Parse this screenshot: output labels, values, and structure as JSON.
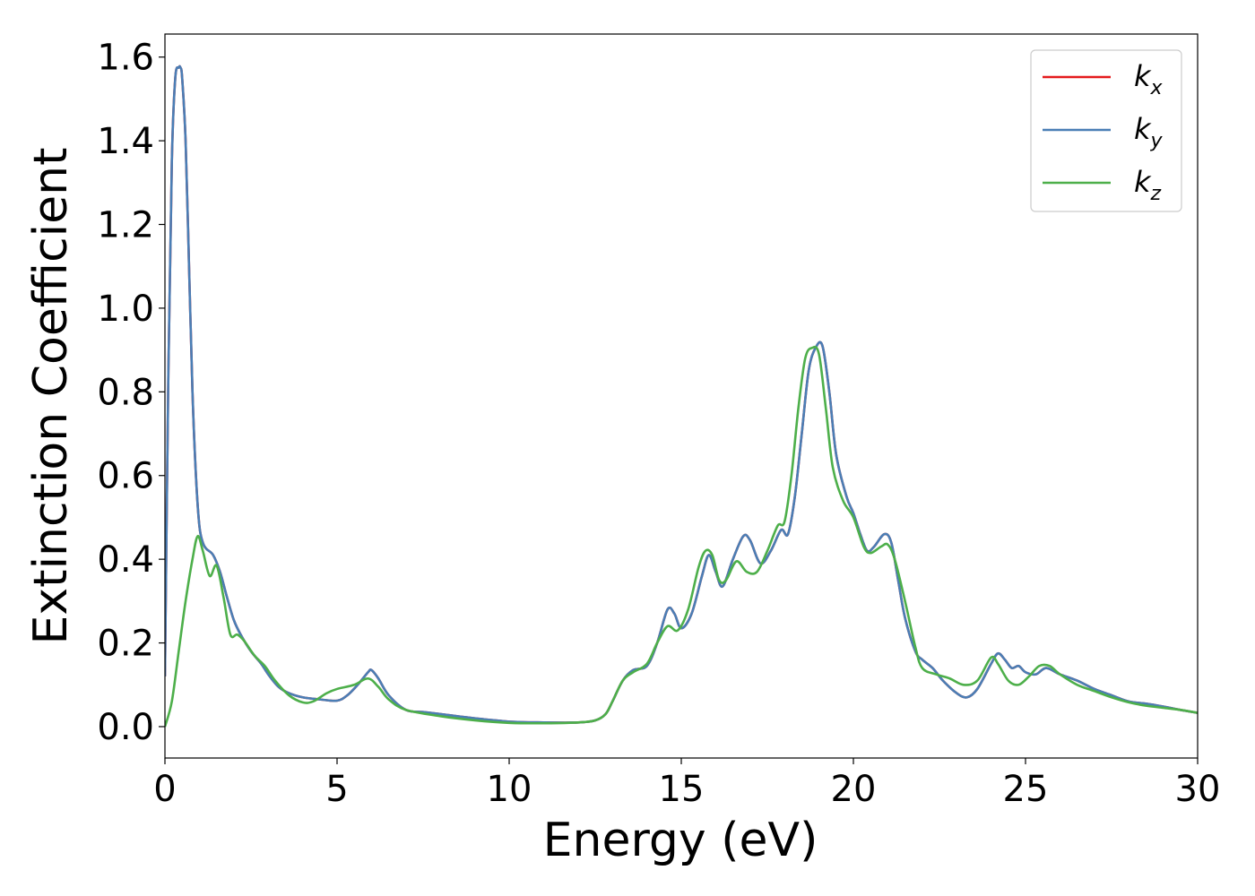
{
  "chart_data": {
    "type": "line",
    "title": "",
    "xlabel": "Energy (eV)",
    "ylabel": "Extinction Coefficient",
    "xlim": [
      0,
      30
    ],
    "ylim": [
      -0.075,
      1.655
    ],
    "xticks": [
      0,
      5,
      10,
      15,
      20,
      25,
      30
    ],
    "xtick_labels": [
      "0",
      "5",
      "10",
      "15",
      "20",
      "25",
      "30"
    ],
    "yticks": [
      0.0,
      0.2,
      0.4,
      0.6,
      0.8,
      1.0,
      1.2,
      1.4,
      1.6
    ],
    "ytick_labels": [
      "0.0",
      "0.2",
      "0.4",
      "0.6",
      "0.8",
      "1.0",
      "1.2",
      "1.4",
      "1.6"
    ],
    "grid": false,
    "legend_position": "top-right",
    "series": [
      {
        "name": "k_x",
        "label_main": "k",
        "label_sub": "x",
        "color": "#e41a1c",
        "x": [
          0,
          0.1,
          0.2,
          0.3,
          0.4,
          0.45,
          0.5,
          0.6,
          0.7,
          0.8,
          0.9,
          1.0,
          1.1,
          1.2,
          1.4,
          1.6,
          1.8,
          2.0,
          2.2,
          2.5,
          2.8,
          3.0,
          3.3,
          3.6,
          4.0,
          4.5,
          5.0,
          5.3,
          5.6,
          5.9,
          6.0,
          6.2,
          6.5,
          7.0,
          7.5,
          8.0,
          9.0,
          10.0,
          11.0,
          12.0,
          12.5,
          12.8,
          13.0,
          13.3,
          13.6,
          14.0,
          14.3,
          14.6,
          14.8,
          15.0,
          15.3,
          15.6,
          15.8,
          16.0,
          16.2,
          16.5,
          16.8,
          17.0,
          17.3,
          17.6,
          17.9,
          18.1,
          18.3,
          18.5,
          18.7,
          18.9,
          19.1,
          19.3,
          19.5,
          19.8,
          20.0,
          20.2,
          20.4,
          20.6,
          20.9,
          21.1,
          21.3,
          21.5,
          21.8,
          22.0,
          22.3,
          22.6,
          23.0,
          23.3,
          23.6,
          24.0,
          24.2,
          24.4,
          24.6,
          24.8,
          25.0,
          25.3,
          25.6,
          26.0,
          26.5,
          27.0,
          27.5,
          28.0,
          28.5,
          29.0,
          29.5,
          30.0
        ],
        "y": [
          0.12,
          0.85,
          1.35,
          1.55,
          1.575,
          1.575,
          1.55,
          1.4,
          1.1,
          0.8,
          0.6,
          0.48,
          0.44,
          0.425,
          0.41,
          0.37,
          0.31,
          0.255,
          0.22,
          0.18,
          0.15,
          0.125,
          0.095,
          0.08,
          0.07,
          0.065,
          0.062,
          0.075,
          0.1,
          0.13,
          0.135,
          0.115,
          0.075,
          0.04,
          0.035,
          0.03,
          0.02,
          0.012,
          0.01,
          0.01,
          0.015,
          0.03,
          0.06,
          0.11,
          0.135,
          0.145,
          0.2,
          0.28,
          0.27,
          0.235,
          0.27,
          0.36,
          0.41,
          0.37,
          0.335,
          0.4,
          0.455,
          0.445,
          0.39,
          0.42,
          0.47,
          0.46,
          0.55,
          0.7,
          0.85,
          0.905,
          0.91,
          0.8,
          0.65,
          0.55,
          0.51,
          0.46,
          0.42,
          0.43,
          0.46,
          0.44,
          0.35,
          0.26,
          0.18,
          0.16,
          0.14,
          0.11,
          0.08,
          0.07,
          0.09,
          0.15,
          0.175,
          0.16,
          0.14,
          0.145,
          0.13,
          0.125,
          0.14,
          0.125,
          0.11,
          0.09,
          0.075,
          0.06,
          0.055,
          0.048,
          0.04,
          0.033
        ]
      },
      {
        "name": "k_y",
        "label_main": "k",
        "label_sub": "y",
        "color": "#4a7eb5",
        "x": [
          0,
          0.1,
          0.2,
          0.3,
          0.4,
          0.45,
          0.5,
          0.6,
          0.7,
          0.8,
          0.9,
          1.0,
          1.1,
          1.2,
          1.4,
          1.6,
          1.8,
          2.0,
          2.2,
          2.5,
          2.8,
          3.0,
          3.3,
          3.6,
          4.0,
          4.5,
          5.0,
          5.3,
          5.6,
          5.9,
          6.0,
          6.2,
          6.5,
          7.0,
          7.5,
          8.0,
          9.0,
          10.0,
          11.0,
          12.0,
          12.5,
          12.8,
          13.0,
          13.3,
          13.6,
          14.0,
          14.3,
          14.6,
          14.8,
          15.0,
          15.3,
          15.6,
          15.8,
          16.0,
          16.2,
          16.5,
          16.8,
          17.0,
          17.3,
          17.6,
          17.9,
          18.1,
          18.3,
          18.5,
          18.7,
          18.9,
          19.1,
          19.3,
          19.5,
          19.8,
          20.0,
          20.2,
          20.4,
          20.6,
          20.9,
          21.1,
          21.3,
          21.5,
          21.8,
          22.0,
          22.3,
          22.6,
          23.0,
          23.3,
          23.6,
          24.0,
          24.2,
          24.4,
          24.6,
          24.8,
          25.0,
          25.3,
          25.6,
          26.0,
          26.5,
          27.0,
          27.5,
          28.0,
          28.5,
          29.0,
          29.5,
          30.0
        ],
        "y": [
          0.12,
          0.85,
          1.35,
          1.55,
          1.575,
          1.575,
          1.55,
          1.4,
          1.1,
          0.8,
          0.6,
          0.48,
          0.44,
          0.425,
          0.41,
          0.37,
          0.31,
          0.255,
          0.22,
          0.18,
          0.15,
          0.125,
          0.095,
          0.08,
          0.07,
          0.065,
          0.062,
          0.075,
          0.1,
          0.13,
          0.135,
          0.115,
          0.075,
          0.04,
          0.035,
          0.03,
          0.02,
          0.012,
          0.01,
          0.01,
          0.015,
          0.03,
          0.06,
          0.11,
          0.135,
          0.145,
          0.2,
          0.28,
          0.27,
          0.235,
          0.27,
          0.36,
          0.41,
          0.37,
          0.335,
          0.4,
          0.455,
          0.445,
          0.39,
          0.42,
          0.47,
          0.46,
          0.55,
          0.7,
          0.85,
          0.905,
          0.91,
          0.8,
          0.65,
          0.55,
          0.51,
          0.46,
          0.42,
          0.43,
          0.46,
          0.44,
          0.35,
          0.26,
          0.18,
          0.16,
          0.14,
          0.11,
          0.08,
          0.07,
          0.09,
          0.15,
          0.175,
          0.16,
          0.14,
          0.145,
          0.13,
          0.125,
          0.14,
          0.125,
          0.11,
          0.09,
          0.075,
          0.06,
          0.055,
          0.048,
          0.04,
          0.033
        ]
      },
      {
        "name": "k_z",
        "label_main": "k",
        "label_sub": "z",
        "color": "#4daf4a",
        "x": [
          0,
          0.2,
          0.4,
          0.6,
          0.8,
          0.95,
          1.1,
          1.3,
          1.5,
          1.7,
          1.9,
          2.1,
          2.3,
          2.6,
          2.9,
          3.2,
          3.6,
          4.0,
          4.3,
          4.7,
          5.0,
          5.5,
          5.9,
          6.2,
          6.5,
          7.0,
          8.0,
          9.0,
          10.0,
          11.0,
          12.0,
          12.5,
          12.8,
          13.0,
          13.3,
          13.6,
          14.0,
          14.3,
          14.6,
          14.9,
          15.2,
          15.5,
          15.7,
          15.9,
          16.1,
          16.3,
          16.6,
          16.9,
          17.2,
          17.5,
          17.8,
          18.0,
          18.2,
          18.4,
          18.6,
          18.8,
          19.0,
          19.2,
          19.4,
          19.7,
          20.0,
          20.3,
          20.5,
          20.8,
          21.0,
          21.2,
          21.5,
          21.8,
          22.0,
          22.4,
          22.8,
          23.2,
          23.6,
          24.0,
          24.2,
          24.5,
          24.8,
          25.1,
          25.4,
          25.7,
          26.0,
          26.5,
          27.0,
          27.5,
          28.0,
          28.5,
          29.0,
          29.5,
          30.0
        ],
        "y": [
          0.0,
          0.06,
          0.18,
          0.3,
          0.4,
          0.455,
          0.42,
          0.36,
          0.385,
          0.31,
          0.22,
          0.22,
          0.205,
          0.17,
          0.145,
          0.11,
          0.075,
          0.058,
          0.06,
          0.08,
          0.09,
          0.1,
          0.115,
          0.095,
          0.065,
          0.04,
          0.025,
          0.015,
          0.009,
          0.008,
          0.01,
          0.015,
          0.03,
          0.06,
          0.11,
          0.13,
          0.15,
          0.2,
          0.24,
          0.23,
          0.28,
          0.38,
          0.42,
          0.41,
          0.35,
          0.35,
          0.395,
          0.37,
          0.37,
          0.42,
          0.48,
          0.49,
          0.6,
          0.76,
          0.88,
          0.905,
          0.89,
          0.76,
          0.62,
          0.54,
          0.5,
          0.43,
          0.415,
          0.43,
          0.435,
          0.4,
          0.3,
          0.19,
          0.14,
          0.125,
          0.115,
          0.1,
          0.11,
          0.165,
          0.15,
          0.11,
          0.1,
          0.12,
          0.145,
          0.145,
          0.125,
          0.1,
          0.085,
          0.07,
          0.058,
          0.05,
          0.045,
          0.04,
          0.033
        ]
      }
    ]
  }
}
